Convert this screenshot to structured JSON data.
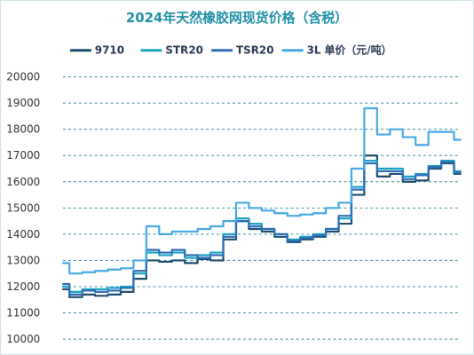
{
  "chart_data": {
    "type": "line",
    "title": "2024年天然橡胶网现货价格（含税）",
    "xlabel": "",
    "ylabel": "",
    "ylim": [
      10000,
      20000
    ],
    "yticks": [
      10000,
      11000,
      12000,
      13000,
      14000,
      15000,
      16000,
      17000,
      18000,
      19000,
      20000
    ],
    "grid": true,
    "legend_position": "top",
    "x": [
      1,
      11,
      21,
      31,
      41,
      51,
      61,
      71,
      81,
      91,
      101,
      111,
      121,
      131,
      141,
      151,
      161,
      171,
      181,
      191,
      201,
      211,
      221,
      231,
      241,
      251,
      261,
      271,
      281,
      291,
      301,
      311
    ],
    "series": [
      {
        "name": "9710",
        "color": "#1d4e6e",
        "values": [
          11900,
          11600,
          11700,
          11650,
          11700,
          11800,
          12300,
          13000,
          12950,
          13000,
          12900,
          13050,
          13000,
          13800,
          14500,
          14200,
          14100,
          13900,
          13700,
          13800,
          13900,
          14100,
          14400,
          15500,
          17000,
          16200,
          16300,
          16000,
          16050,
          16500,
          16700,
          16300
        ]
      },
      {
        "name": "STR20",
        "color": "#1aa3c4",
        "values": [
          12000,
          11800,
          11900,
          11900,
          11950,
          12000,
          12500,
          13300,
          13200,
          13300,
          13100,
          13200,
          13300,
          14000,
          14600,
          14400,
          14200,
          14000,
          13800,
          13900,
          14000,
          14200,
          14600,
          15800,
          16800,
          16500,
          16500,
          16200,
          16300,
          16600,
          16800,
          16400
        ]
      },
      {
        "name": "TSR20",
        "color": "#2f6db5",
        "values": [
          12100,
          11700,
          11850,
          11800,
          11850,
          11950,
          12600,
          13400,
          13300,
          13400,
          13200,
          13100,
          13200,
          13900,
          14500,
          14300,
          14200,
          14000,
          13750,
          13850,
          13950,
          14200,
          14700,
          15700,
          16700,
          16400,
          16400,
          16100,
          16250,
          16550,
          16750,
          16350
        ]
      },
      {
        "name": "3L",
        "color": "#45a9e6",
        "values": [
          12900,
          12500,
          12550,
          12600,
          12650,
          12700,
          13000,
          14300,
          14000,
          14100,
          14100,
          14200,
          14300,
          14500,
          15200,
          15000,
          14900,
          14800,
          14700,
          14750,
          14800,
          15000,
          15200,
          16500,
          18800,
          17800,
          18000,
          17700,
          17400,
          17900,
          17900,
          17600
        ]
      }
    ],
    "legend_suffix": "单价（元/吨）"
  }
}
